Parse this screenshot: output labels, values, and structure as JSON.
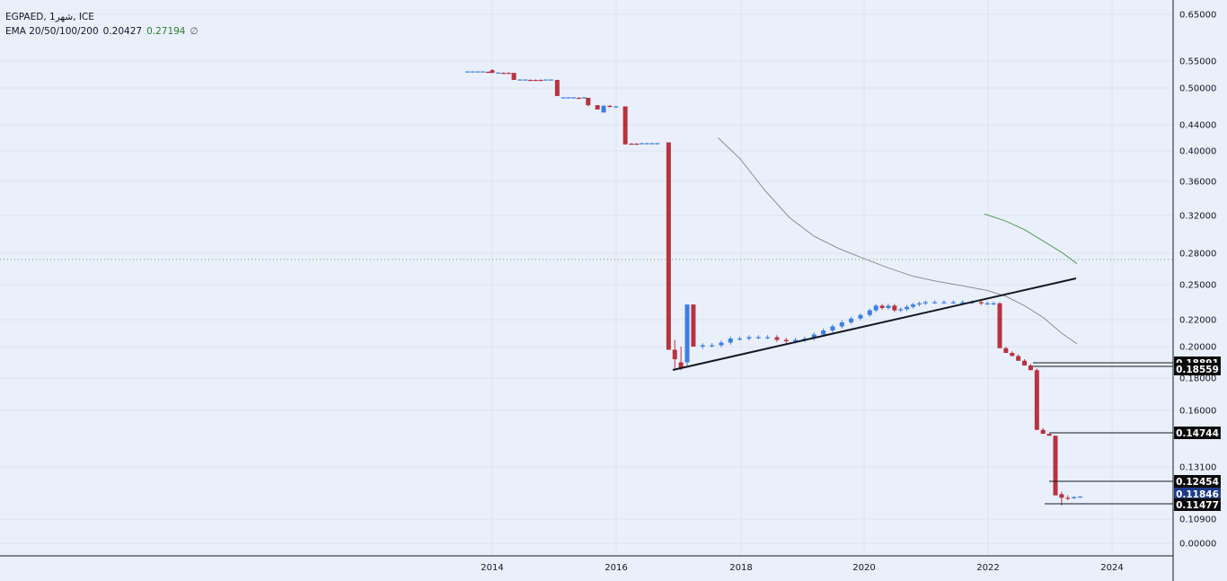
{
  "legend": {
    "symbol_line": "EGPAED, 1شهر, ICE",
    "ema_label": "EMA 20/50/100/200",
    "ema_value_1": "0.20427",
    "ema_value_2": "0.27194",
    "ema_value_3": "∅"
  },
  "chart_data": {
    "type": "candlestick",
    "x_axis_ticks": [
      "2014",
      "2016",
      "2018",
      "2020",
      "2022",
      "2024"
    ],
    "y_axis_ticks": [
      "0.65000",
      "0.55000",
      "0.50000",
      "0.44000",
      "0.40000",
      "0.36000",
      "0.32000",
      "0.28000",
      "0.25000",
      "0.22000",
      "0.20000",
      "0.18000",
      "0.16000",
      "0.13100",
      "0.10900",
      "0.00000"
    ],
    "price_tags": [
      {
        "label": "0.18891",
        "style": "black"
      },
      {
        "label": "0.18559",
        "style": "black"
      },
      {
        "label": "0.14744",
        "style": "black"
      },
      {
        "label": "0.12454",
        "style": "black"
      },
      {
        "label": "0.11846",
        "style": "blue"
      },
      {
        "label": "0.11477",
        "style": "black"
      }
    ],
    "colors": {
      "up": "#3d7ee6",
      "down": "#b8323f",
      "ema_grey": "#8a8f96",
      "ema_green": "#5a9a5a",
      "trendline": "#131722"
    }
  }
}
